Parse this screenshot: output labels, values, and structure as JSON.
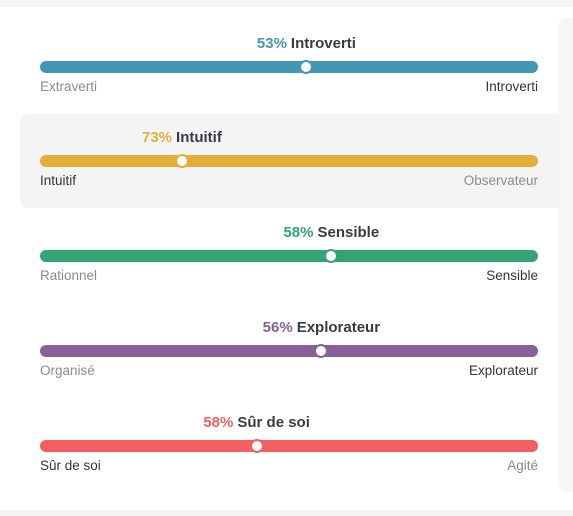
{
  "traits": [
    {
      "percent": "53%",
      "trait": "Introverti",
      "left_label": "Extraverti",
      "right_label": "Introverti",
      "active_side": "right",
      "position": 0.535,
      "color": "#4298b4",
      "highlighted": false
    },
    {
      "percent": "73%",
      "trait": "Intuitif",
      "left_label": "Intuitif",
      "right_label": "Observateur",
      "active_side": "left",
      "position": 0.285,
      "color": "#e4ae3a",
      "highlighted": true
    },
    {
      "percent": "58%",
      "trait": "Sensible",
      "left_label": "Rationnel",
      "right_label": "Sensible",
      "active_side": "right",
      "position": 0.585,
      "color": "#33a474",
      "highlighted": false
    },
    {
      "percent": "56%",
      "trait": "Explorateur",
      "left_label": "Organisé",
      "right_label": "Explorateur",
      "active_side": "right",
      "position": 0.565,
      "color": "#88619a",
      "highlighted": false
    },
    {
      "percent": "58%",
      "trait": "Sûr de soi",
      "left_label": "Sûr de soi",
      "right_label": "Agité",
      "active_side": "left",
      "position": 0.435,
      "color": "#f25e62",
      "highlighted": false
    }
  ]
}
